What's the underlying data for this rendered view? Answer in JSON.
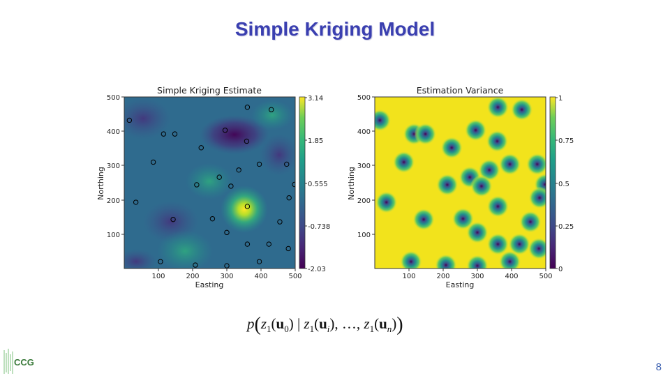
{
  "slide": {
    "title": "Simple Kriging Model",
    "formula": "p(z1(u0) | z1(ui), …, z1(un))",
    "page_number": "8",
    "logo_text": "CCG",
    "colors": {
      "title": "#3a3fb0",
      "page_number": "#3a5fb0",
      "logo_green": "#3a9a3a"
    }
  },
  "plots": {
    "colormap": "viridis",
    "estimate": {
      "title": "Simple Kriging Estimate",
      "xlabel": "Easting",
      "ylabel": "Northing",
      "xticks": [
        "100",
        "200",
        "300",
        "400",
        "500"
      ],
      "yticks": [
        "100",
        "200",
        "300",
        "400",
        "500"
      ],
      "colorbar_ticks": [
        "3.14",
        "1.85",
        "0.555",
        "-0.738",
        "-2.03"
      ],
      "colorbar_range": [
        -2.03,
        3.14
      ]
    },
    "variance": {
      "title": "Estimation Variance",
      "xlabel": "Easting",
      "ylabel": "Northing",
      "xticks": [
        "100",
        "200",
        "300",
        "400",
        "500"
      ],
      "yticks": [
        "100",
        "200",
        "300",
        "400",
        "500"
      ],
      "colorbar_ticks": [
        "1",
        "0.75",
        "0.5",
        "0.25",
        "0"
      ],
      "colorbar_range": [
        0,
        1
      ]
    },
    "data_points": [
      {
        "easting": 15,
        "northing": 432
      },
      {
        "easting": 360,
        "northing": 470
      },
      {
        "easting": 430,
        "northing": 463
      },
      {
        "easting": 115,
        "northing": 392
      },
      {
        "easting": 148,
        "northing": 392
      },
      {
        "easting": 295,
        "northing": 403
      },
      {
        "easting": 358,
        "northing": 371
      },
      {
        "easting": 225,
        "northing": 352
      },
      {
        "easting": 85,
        "northing": 310
      },
      {
        "easting": 395,
        "northing": 304
      },
      {
        "easting": 475,
        "northing": 304
      },
      {
        "easting": 335,
        "northing": 287
      },
      {
        "easting": 278,
        "northing": 266
      },
      {
        "easting": 212,
        "northing": 244
      },
      {
        "easting": 312,
        "northing": 240
      },
      {
        "easting": 498,
        "northing": 245
      },
      {
        "easting": 34,
        "northing": 193
      },
      {
        "easting": 482,
        "northing": 206
      },
      {
        "easting": 360,
        "northing": 181
      },
      {
        "easting": 143,
        "northing": 143
      },
      {
        "easting": 258,
        "northing": 145
      },
      {
        "easting": 455,
        "northing": 136
      },
      {
        "easting": 300,
        "northing": 105
      },
      {
        "easting": 360,
        "northing": 71
      },
      {
        "easting": 423,
        "northing": 71
      },
      {
        "easting": 480,
        "northing": 58
      },
      {
        "easting": 106,
        "northing": 20
      },
      {
        "easting": 208,
        "northing": 10
      },
      {
        "easting": 300,
        "northing": 8
      },
      {
        "easting": 395,
        "northing": 20
      }
    ]
  }
}
